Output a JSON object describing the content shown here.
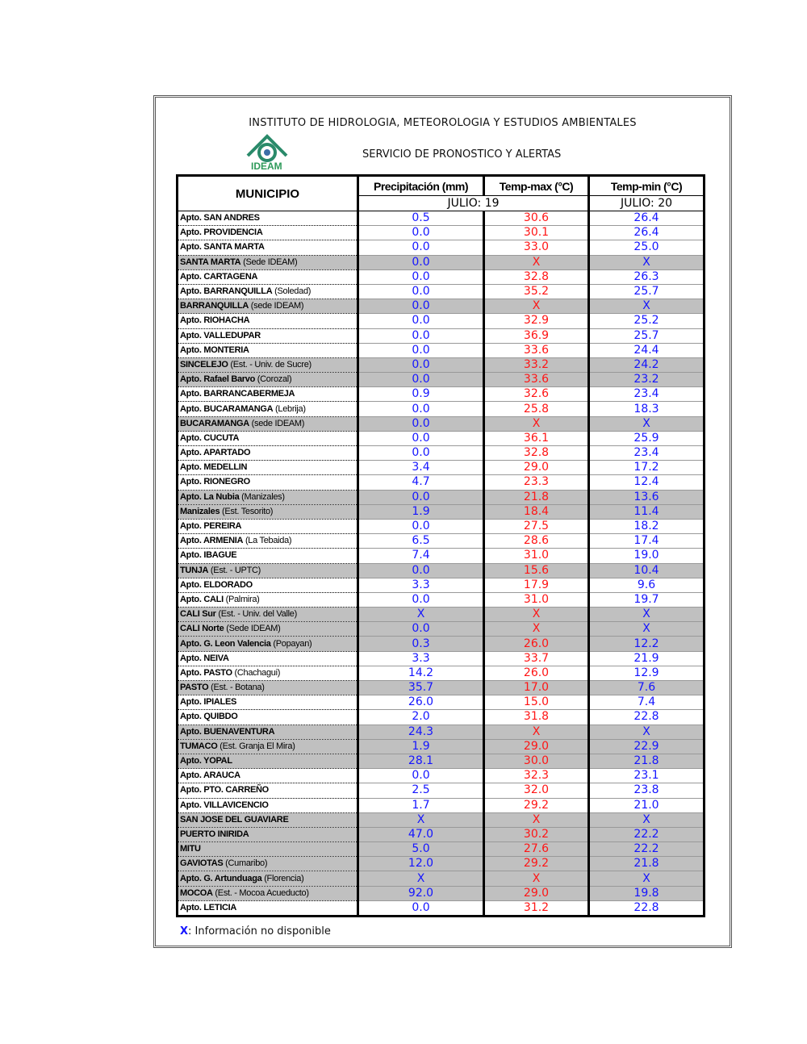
{
  "header": {
    "institute": "INSTITUTO DE HIDROLOGIA, METEOROLOGIA Y ESTUDIOS AMBIENTALES",
    "service": "SERVICIO DE PRONOSTICO Y ALERTAS",
    "logo_text": "IDEAM"
  },
  "table": {
    "col_municipio": "MUNICIPIO",
    "col_precip": "Precipitación (mm)",
    "col_tmax": "Temp-max (°C)",
    "col_tmin": "Temp-min (°C)",
    "date_1": "JULIO: 19",
    "date_2": "JULIO: 20",
    "colors": {
      "precip": "#1515ff",
      "tmax": "#ff1515",
      "tmin": "#1515ff",
      "highlight_row": "#c0c0c0"
    },
    "rows": [
      {
        "bold": "Apto. SAN ANDRES",
        "rest": "",
        "p": "0.5",
        "tx": "30.6",
        "tn": "26.4",
        "gray": false
      },
      {
        "bold": "Apto. PROVIDENCIA",
        "rest": "",
        "p": "0.0",
        "tx": "30.1",
        "tn": "26.4",
        "gray": false
      },
      {
        "bold": "Apto. SANTA MARTA",
        "rest": "",
        "p": "0.0",
        "tx": "33.0",
        "tn": "25.0",
        "gray": false
      },
      {
        "bold": "SANTA MARTA",
        "rest": " (Sede IDEAM)",
        "p": "0.0",
        "tx": "X",
        "tn": "X",
        "gray": true
      },
      {
        "bold": "Apto. CARTAGENA",
        "rest": "",
        "p": "0.0",
        "tx": "32.8",
        "tn": "26.3",
        "gray": false
      },
      {
        "bold": "Apto. BARRANQUILLA",
        "rest": " (Soledad)",
        "p": "0.0",
        "tx": "35.2",
        "tn": "25.7",
        "gray": false
      },
      {
        "bold": "BARRANQUILLA",
        "rest": " (sede IDEAM)",
        "p": "0.0",
        "tx": "X",
        "tn": "X",
        "gray": true
      },
      {
        "bold": "Apto. RIOHACHA",
        "rest": "",
        "p": "0.0",
        "tx": "32.9",
        "tn": "25.2",
        "gray": false
      },
      {
        "bold": "Apto. VALLEDUPAR",
        "rest": "",
        "p": "0.0",
        "tx": "36.9",
        "tn": "25.7",
        "gray": false
      },
      {
        "bold": "Apto. MONTERIA",
        "rest": "",
        "p": "0.0",
        "tx": "33.6",
        "tn": "24.4",
        "gray": false
      },
      {
        "bold": "SINCELEJO",
        "rest": " (Est. - Univ. de Sucre)",
        "p": "0.0",
        "tx": "33.2",
        "tn": "24.2",
        "gray": true
      },
      {
        "bold": "Apto. Rafael Barvo",
        "rest": " (Corozal)",
        "p": "0.0",
        "tx": "33.6",
        "tn": "23.2",
        "gray": true
      },
      {
        "bold": "Apto. BARRANCABERMEJA",
        "rest": "",
        "p": "0.9",
        "tx": "32.6",
        "tn": "23.4",
        "gray": false
      },
      {
        "bold": "Apto. BUCARAMANGA",
        "rest": " (Lebrija)",
        "p": "0.0",
        "tx": "25.8",
        "tn": "18.3",
        "gray": false
      },
      {
        "bold": "BUCARAMANGA",
        "rest": " (sede IDEAM)",
        "p": "0.0",
        "tx": "X",
        "tn": "X",
        "gray": true
      },
      {
        "bold": "Apto. CUCUTA",
        "rest": "",
        "p": "0.0",
        "tx": "36.1",
        "tn": "25.9",
        "gray": false
      },
      {
        "bold": "Apto. APARTADO",
        "rest": "",
        "p": "0.0",
        "tx": "32.8",
        "tn": "23.4",
        "gray": false
      },
      {
        "bold": "Apto. MEDELLIN",
        "rest": "",
        "p": "3.4",
        "tx": "29.0",
        "tn": "17.2",
        "gray": false
      },
      {
        "bold": "Apto. RIONEGRO",
        "rest": "",
        "p": "4.7",
        "tx": "23.3",
        "tn": "12.4",
        "gray": false
      },
      {
        "bold": "Apto. La Nubia",
        "rest": " (Manizales)",
        "p": "0.0",
        "tx": "21.8",
        "tn": "13.6",
        "gray": true
      },
      {
        "bold": "Manizales",
        "rest": " (Est. Tesorito)",
        "p": "1.9",
        "tx": "18.4",
        "tn": "11.4",
        "gray": true
      },
      {
        "bold": "Apto. PEREIRA",
        "rest": "",
        "p": "0.0",
        "tx": "27.5",
        "tn": "18.2",
        "gray": false
      },
      {
        "bold": "Apto. ARMENIA",
        "rest": " (La Tebaida)",
        "p": "6.5",
        "tx": "28.6",
        "tn": "17.4",
        "gray": false
      },
      {
        "bold": "Apto. IBAGUE",
        "rest": "",
        "p": "7.4",
        "tx": "31.0",
        "tn": "19.0",
        "gray": false
      },
      {
        "bold": "TUNJA",
        "rest": " (Est. - UPTC)",
        "p": "0.0",
        "tx": "15.6",
        "tn": "10.4",
        "gray": true
      },
      {
        "bold": "Apto. ELDORADO",
        "rest": "",
        "p": "3.3",
        "tx": "17.9",
        "tn": "9.6",
        "gray": false
      },
      {
        "bold": "Apto. CALI",
        "rest": " (Palmira)",
        "p": "0.0",
        "tx": "31.0",
        "tn": "19.7",
        "gray": false
      },
      {
        "bold": "CALI Sur",
        "rest": " (Est. - Univ. del Valle)",
        "p": "X",
        "tx": "X",
        "tn": "X",
        "gray": true
      },
      {
        "bold": "CALI Norte",
        "rest": " (Sede IDEAM)",
        "p": "0.0",
        "tx": "X",
        "tn": "X",
        "gray": true
      },
      {
        "bold": "Apto. G. Leon Valencia",
        "rest": " (Popayan)",
        "p": "0.3",
        "tx": "26.0",
        "tn": "12.2",
        "gray": true
      },
      {
        "bold": "Apto. NEIVA",
        "rest": "",
        "p": "3.3",
        "tx": "33.7",
        "tn": "21.9",
        "gray": false
      },
      {
        "bold": "Apto. PASTO",
        "rest": " (Chachagui)",
        "p": "14.2",
        "tx": "26.0",
        "tn": "12.9",
        "gray": false
      },
      {
        "bold": "PASTO",
        "rest": " (Est. - Botana)",
        "p": "35.7",
        "tx": "17.0",
        "tn": "7.6",
        "gray": true
      },
      {
        "bold": "Apto. IPIALES",
        "rest": "",
        "p": "26.0",
        "tx": "15.0",
        "tn": "7.4",
        "gray": false
      },
      {
        "bold": "Apto. QUIBDO",
        "rest": "",
        "p": "2.0",
        "tx": "31.8",
        "tn": "22.8",
        "gray": false
      },
      {
        "bold": "Apto. BUENAVENTURA",
        "rest": "",
        "p": "24.3",
        "tx": "X",
        "tn": "X",
        "gray": true
      },
      {
        "bold": "TUMACO",
        "rest": " (Est. Granja El Mira)",
        "p": "1.9",
        "tx": "29.0",
        "tn": "22.9",
        "gray": true
      },
      {
        "bold": "Apto. YOPAL",
        "rest": "",
        "p": "28.1",
        "tx": "30.0",
        "tn": "21.8",
        "gray": true
      },
      {
        "bold": "Apto. ARAUCA",
        "rest": "",
        "p": "0.0",
        "tx": "32.3",
        "tn": "23.1",
        "gray": false
      },
      {
        "bold": "Apto. PTO.  CARREÑO",
        "rest": "",
        "p": "2.5",
        "tx": "32.0",
        "tn": "23.8",
        "gray": false
      },
      {
        "bold": "Apto. VILLAVICENCIO",
        "rest": "",
        "p": "1.7",
        "tx": "29.2",
        "tn": "21.0",
        "gray": false
      },
      {
        "bold": "SAN JOSE DEL GUAVIARE",
        "rest": "",
        "p": "X",
        "tx": "X",
        "tn": "X",
        "gray": true
      },
      {
        "bold": "PUERTO INIRIDA",
        "rest": "",
        "p": "47.0",
        "tx": "30.2",
        "tn": "22.2",
        "gray": true
      },
      {
        "bold": "MITU",
        "rest": "",
        "p": "5.0",
        "tx": "27.6",
        "tn": "22.2",
        "gray": true
      },
      {
        "bold": "GAVIOTAS",
        "rest": " (Cumaribo)",
        "p": "12.0",
        "tx": "29.2",
        "tn": "21.8",
        "gray": true
      },
      {
        "bold": "Apto. G. Artunduaga",
        "rest": " (Florencia)",
        "p": "X",
        "tx": "X",
        "tn": "X",
        "gray": true
      },
      {
        "bold": "MOCOA",
        "rest": " (Est. - Mocoa Acueducto)",
        "p": "92.0",
        "tx": "29.0",
        "tn": "19.8",
        "gray": true
      },
      {
        "bold": "Apto. LETICIA",
        "rest": "",
        "p": "0.0",
        "tx": "31.2",
        "tn": "22.8",
        "gray": false
      }
    ]
  },
  "legend": {
    "symbol": "X",
    "text": ": Información no disponible"
  }
}
